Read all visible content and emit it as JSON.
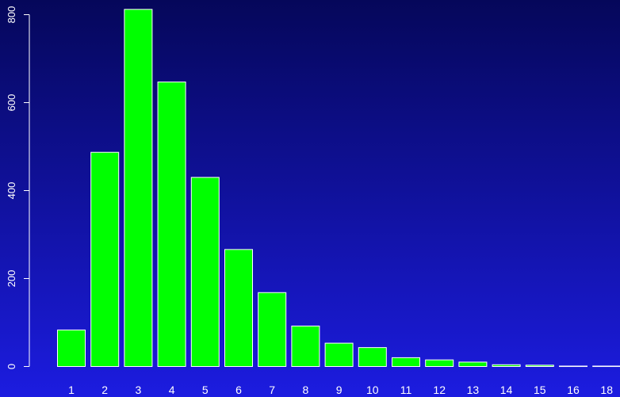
{
  "chart_data": {
    "type": "bar",
    "categories": [
      "1",
      "2",
      "3",
      "4",
      "5",
      "6",
      "7",
      "8",
      "9",
      "10",
      "11",
      "12",
      "13",
      "14",
      "15",
      "16",
      "18"
    ],
    "values": [
      83,
      487,
      812,
      647,
      430,
      266,
      168,
      92,
      53,
      43,
      20,
      15,
      10,
      4,
      3,
      1,
      1
    ],
    "title": "",
    "xlabel": "",
    "ylabel": "",
    "ylim": [
      0,
      800
    ],
    "yticks": [
      "0",
      "200",
      "400",
      "600",
      "800"
    ],
    "grid": false,
    "legend": "none",
    "colors": {
      "bar_fill": "#00ff00",
      "bar_stroke": "#ffffff",
      "background_top": "#05075a",
      "background_bottom": "#1c1ce0",
      "text": "#ffffff"
    }
  }
}
